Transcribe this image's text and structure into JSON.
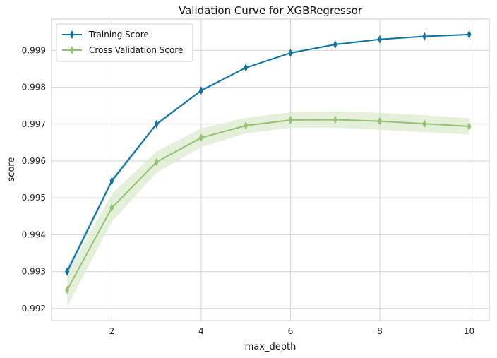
{
  "chart_data": {
    "type": "line",
    "title": "Validation Curve for XGBRegressor",
    "xlabel": "max_depth",
    "ylabel": "score",
    "xlim": [
      0.65,
      10.45
    ],
    "ylim": [
      0.99167,
      0.99985
    ],
    "xticks": [
      2,
      4,
      6,
      8,
      10
    ],
    "yticks": [
      0.992,
      0.993,
      0.994,
      0.995,
      0.996,
      0.997,
      0.998,
      0.999
    ],
    "grid": true,
    "legend_position": "top-left",
    "x": [
      1,
      2,
      3,
      4,
      5,
      6,
      7,
      8,
      9,
      10
    ],
    "series": [
      {
        "name": "Training Score",
        "color": "#0e72a3",
        "marker": "thin-diamond",
        "values": [
          0.993,
          0.99546,
          0.997,
          0.99791,
          0.99853,
          0.99893,
          0.99916,
          0.9993,
          0.99938,
          0.99943
        ],
        "band_lower": [
          0.9929,
          0.99539,
          0.99696,
          0.99788,
          0.99851,
          0.99891,
          0.99914,
          0.99929,
          0.99937,
          0.99942
        ],
        "band_upper": [
          0.9931,
          0.99553,
          0.99704,
          0.99794,
          0.99855,
          0.99895,
          0.99918,
          0.99931,
          0.99939,
          0.99944
        ]
      },
      {
        "name": "Cross Validation Score",
        "color": "#94c273",
        "band_color": "#dcebcd",
        "marker": "thin-diamond",
        "values": [
          0.9925,
          0.99473,
          0.99597,
          0.99663,
          0.99696,
          0.99711,
          0.99712,
          0.99708,
          0.99701,
          0.99694
        ],
        "band_lower": [
          0.99205,
          0.99435,
          0.99568,
          0.99638,
          0.99675,
          0.9969,
          0.9969,
          0.99685,
          0.99678,
          0.99672
        ],
        "band_upper": [
          0.99295,
          0.99511,
          0.99626,
          0.99688,
          0.99717,
          0.99732,
          0.99734,
          0.99731,
          0.99724,
          0.99716
        ]
      }
    ]
  }
}
